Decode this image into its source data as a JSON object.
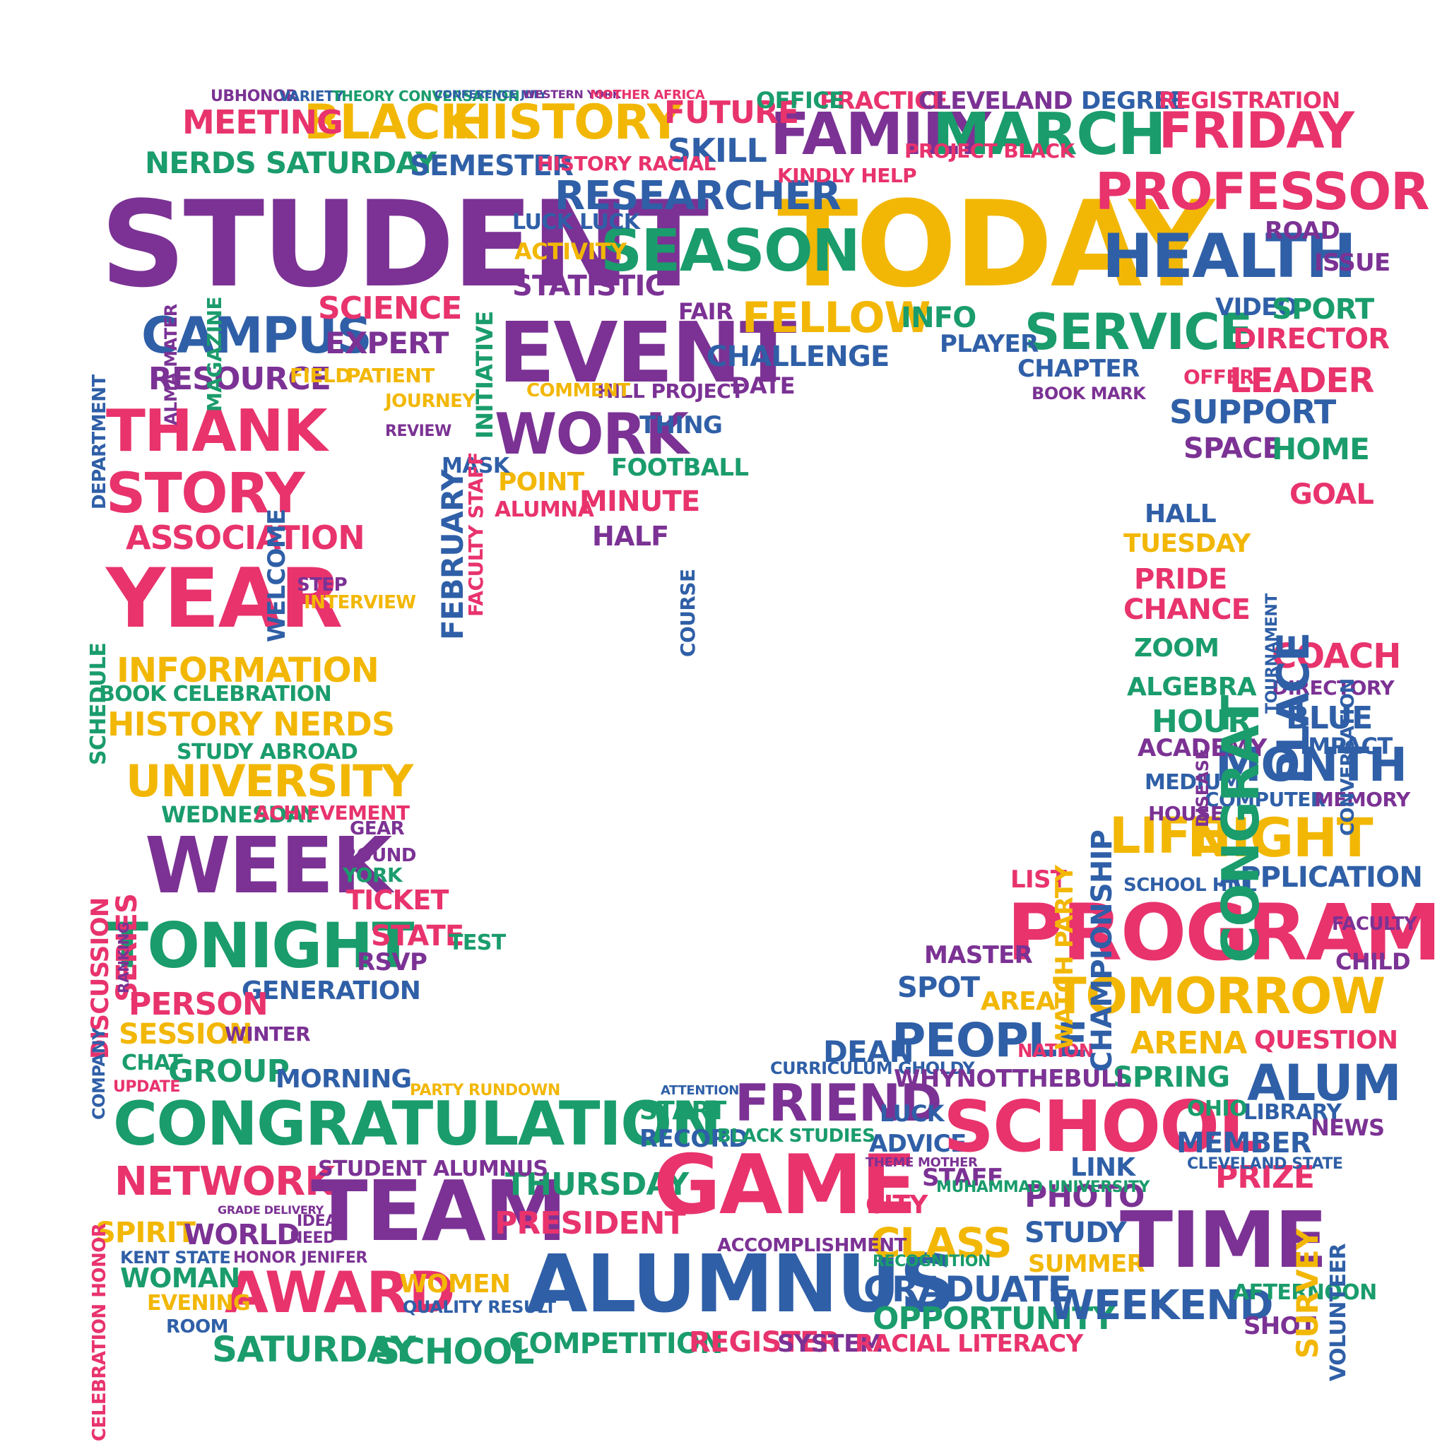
{
  "palette": {
    "purple": "#7b3294",
    "pink": "#e8336d",
    "yellow": "#f2b705",
    "green": "#1a9c6c",
    "blue": "#2f5fa7"
  },
  "words": {
    "student": "STUDENT",
    "today": "TODAY",
    "event": "EVENT",
    "black": "BLACK",
    "history": "HISTORY",
    "family": "FAMILY",
    "march": "MARCH",
    "friday": "FRIDAY",
    "professor": "PROFESSOR",
    "health": "HEALTH",
    "season": "SEASON",
    "researcher": "RESEARCHER",
    "campus": "CAMPUS",
    "resource": "RESOURCE",
    "expert": "EXPERT",
    "science": "SCIENCE",
    "meeting": "MEETING",
    "nerds_saturday": "NERDS SATURDAY",
    "semester": "SEMESTER",
    "skill": "SKILL",
    "future": "FUTURE",
    "practice": "PRACTICE",
    "cleveland": "CLEVELAND",
    "degree": "DEGREE",
    "registration": "REGISTRATION",
    "office": "OFFICE",
    "service": "SERVICE",
    "fellow": "FELLOW",
    "info": "INFO",
    "player": "PLAYER",
    "video": "VIDEO",
    "sport": "SPORT",
    "director": "DIRECTOR",
    "leader": "LEADER",
    "support": "SUPPORT",
    "space": "SPACE",
    "home": "HOME",
    "goal": "GOAL",
    "issue": "ISSUE",
    "road": "ROAD",
    "chapter": "CHAPTER",
    "challenge": "CHALLENGE",
    "statistic": "STATISTIC",
    "activity": "ACTIVITY",
    "work": "WORK",
    "thing": "THING",
    "football": "FOOTBALL",
    "point": "POINT",
    "minute": "MINUTE",
    "half": "HALF",
    "alumna": "ALUMNA",
    "mask": "MASK",
    "thank": "THANK",
    "story": "STORY",
    "association": "ASSOCIATION",
    "year": "YEAR",
    "information": "INFORMATION",
    "book_celebration": "BOOK CELEBRATION",
    "history_nerds": "HISTORY NERDS",
    "study_abroad": "STUDY ABROAD",
    "university": "UNIVERSITY",
    "wednesday": "WEDNESDAY",
    "achievement": "ACHIEVEMENT",
    "week": "WEEK",
    "tonight": "TONIGHT",
    "ticket": "TICKET",
    "state": "STATE",
    "rsvp": "RSVP",
    "test": "TEST",
    "generation": "GENERATION",
    "person": "PERSON",
    "session": "SESSION",
    "winter": "WINTER",
    "chat": "CHAT",
    "group": "GROUP",
    "morning": "MORNING",
    "congratulation": "CONGRATULATION",
    "network": "NETWORK",
    "team": "TEAM",
    "award": "AWARD",
    "spirit": "SPIRIT",
    "world": "WORLD",
    "woman": "WOMAN",
    "evening": "EVENING",
    "women": "WOMEN",
    "saturday": "SATURDAY",
    "school": "SCHOOL",
    "thursday": "THURSDAY",
    "president": "PRESIDENT",
    "competition": "COMPETITION",
    "game": "GAME",
    "alumnus": "ALUMNUS",
    "friend": "FRIEND",
    "start": "START",
    "record": "RECORD",
    "register": "REGISTER",
    "system": "SYSTEM",
    "racial_literacy": "RACIAL LITERACY",
    "city": "CITY",
    "class": "CLASS",
    "graduate": "GRADUATE",
    "opportunity": "OPPORTUNITY",
    "people": "PEOPLE",
    "dean": "DEAN",
    "advice": "ADVICE",
    "staff": "STAFF",
    "photo": "PHOTO",
    "study": "STUDY",
    "summer": "SUMMER",
    "weekend": "WEEKEND",
    "time": "TIME",
    "program": "PROGRAM",
    "tomorrow": "TOMORROW",
    "arena": "ARENA",
    "spring": "SPRING",
    "alum": "ALUM",
    "member": "MEMBER",
    "prize": "PRIZE",
    "library": "LIBRARY",
    "news": "NEWS",
    "survey": "SURVEY",
    "volunteer": "VOLUNTEER",
    "question": "QUESTION",
    "link": "LINK",
    "area": "AREA",
    "master": "MASTER",
    "spot": "SPOT",
    "list": "LIST",
    "life": "LIFE",
    "night": "NIGHT",
    "application": "APPLICATION",
    "month": "MONTH",
    "computer": "COMPUTER",
    "memory": "MEMORY",
    "hour": "HOUR",
    "academy": "ACADEMY",
    "medium": "MEDIUM",
    "house": "HOUSE",
    "algebra": "ALGEBRA",
    "zoom": "ZOOM",
    "chance": "CHANCE",
    "pride": "PRIDE",
    "tuesday": "TUESDAY",
    "coach": "COACH",
    "directory": "DIRECTORY",
    "blue": "BLUE",
    "impact": "IMPACT",
    "congrat": "CONGRAT",
    "place": "PLACE",
    "championship": "CHAMPIONSHIP",
    "watch_party": "WATCH PARTY",
    "child": "CHILD",
    "faculty": "FACULTY",
    "ohio": "OHIO",
    "curriculum": "CURRICULUM GHOLDY",
    "february": "FEBRUARY",
    "initiative": "INITIATIVE",
    "welcome": "WELCOME",
    "series": "SERIES",
    "discussion": "DISCUSSION",
    "schedule": "SCHEDULE",
    "magazine": "MAGAZINE",
    "alma_mater": "ALMA MATER",
    "department": "DEPARTMENT",
    "course": "COURSE",
    "faculty_staff": "FACULTY STAFF",
    "whynotthebull": "WHYNOTTHEBULL",
    "accomplishment": "ACCOMPLISHMENT",
    "student_alumnus": "STUDENT ALUMNUS",
    "project_black": "PROJECT BLACK",
    "kindly_help": "KINDLY HELP",
    "hill_project": "HILL PROJECT",
    "comment": "COMMENT",
    "patient": "PATIENT",
    "field": "FIELD",
    "interview": "INTERVIEW",
    "step": "STEP",
    "journey": "JOURNEY",
    "review": "REVIEW",
    "recognition": "RECOGNITION",
    "black_studies": "BLACK STUDIES",
    "party_rundown": "PARTY RUNDOWN",
    "quality_result": "QUALITY RESULT",
    "book_mark": "BOOK MARK",
    "offer": "OFFER",
    "fair": "FAIR",
    "date": "DATE",
    "luck_luck": "LUCK LUCK",
    "history_racial": "HISTORY RACIAL",
    "ubhonor": "UBHONOR",
    "variety": "VARIETY",
    "theory_conversation": "THEORY CONVERSATION",
    "conference_july": "CONFERENCE JULY",
    "western_york": "WESTERN YORK",
    "mother_africa": "MOTHER AFRICA",
    "round": "ROUND",
    "york": "YORK",
    "gear": "GEAR",
    "attention": "ATTENTION",
    "theme": "THEME MOTHER",
    "kent_state": "KENT STATE",
    "cleveland_state": "CLEVELAND STATE",
    "muhammad": "MUHAMMAD UNIVERSITY",
    "conversation": "CONVERSATION",
    "tournament": "TOURNAMENT",
    "shot": "SHOT",
    "afternoon": "AFTERNOON",
    "room": "ROOM",
    "update": "UPDATE",
    "celebration_honor": "CELEBRATION HONOR",
    "company": "COMPANY",
    "disease": "DISEASE",
    "ranking": "RANKING",
    "nation": "NATION",
    "luck": "LUCK",
    "hall": "HALL",
    "school_hill": "SCHOOL HILL",
    "honor_jenifer": "HONOR JENIFER",
    "need": "NEED",
    "idea": "IDEA",
    "grade_delivery": "GRADE DELIVERY"
  }
}
